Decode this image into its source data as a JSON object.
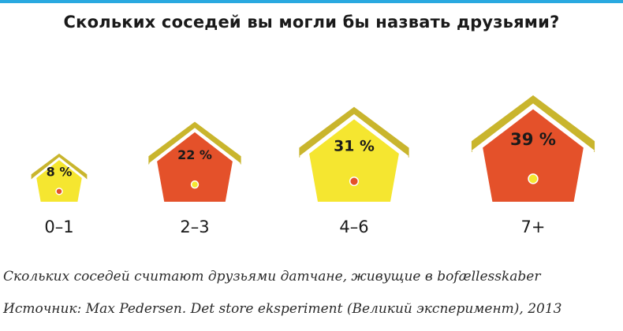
{
  "title": "Скольких соседей вы могли бы назвать друзьями?",
  "chart_data": {
    "type": "bar",
    "title": "Скольких соседей вы могли бы назвать друзьями?",
    "categories": [
      "0–1",
      "2–3",
      "4–6",
      "7+"
    ],
    "values": [
      8,
      22,
      31,
      39
    ],
    "labels": [
      "8 %",
      "22 %",
      "31 %",
      "39 %"
    ],
    "body_colors": [
      "#f5e630",
      "#e4512a",
      "#f5e630",
      "#e4512a"
    ],
    "dot_colors": [
      "#e4512a",
      "#f5e630",
      "#e4512a",
      "#f5e630"
    ],
    "roof_color": "#c9b52d",
    "ylim": [
      0,
      40
    ]
  },
  "caption": "Скольких соседей считают друзьями датчане, живущие в bofællesskaber",
  "source": "Источник: Max Pedersen. Det store eksperiment (Великий эксперимент), 2013",
  "colors": {
    "accent_rule": "#29a9e0"
  }
}
